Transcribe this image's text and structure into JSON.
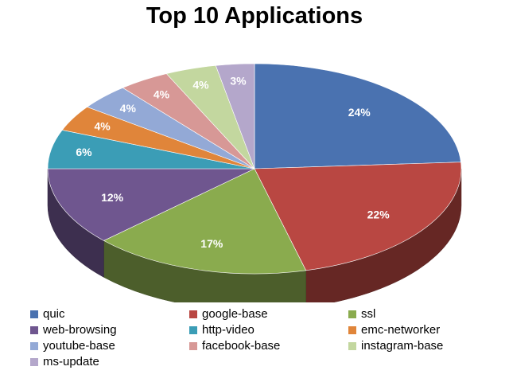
{
  "chart_data": {
    "type": "pie",
    "title": "Top 10 Applications",
    "legend_position": "bottom",
    "slices": [
      {
        "name": "quic",
        "value": 24,
        "label": "24%",
        "color": "#4a72b0"
      },
      {
        "name": "google-base",
        "value": 22,
        "label": "22%",
        "color": "#b94742"
      },
      {
        "name": "ssl",
        "value": 17,
        "label": "17%",
        "color": "#8aab4e"
      },
      {
        "name": "web-browsing",
        "value": 12,
        "label": "12%",
        "color": "#6f568f"
      },
      {
        "name": "http-video",
        "value": 6,
        "label": "6%",
        "color": "#3b9db6"
      },
      {
        "name": "emc-networker",
        "value": 4,
        "label": "4%",
        "color": "#e0853a"
      },
      {
        "name": "youtube-base",
        "value": 4,
        "label": "4%",
        "color": "#93a9d6"
      },
      {
        "name": "facebook-base",
        "value": 4,
        "label": "4%",
        "color": "#d79896"
      },
      {
        "name": "instagram-base",
        "value": 4,
        "label": "4%",
        "color": "#c3d79f"
      },
      {
        "name": "ms-update",
        "value": 3,
        "label": "3%",
        "color": "#b4a7cb"
      }
    ]
  }
}
